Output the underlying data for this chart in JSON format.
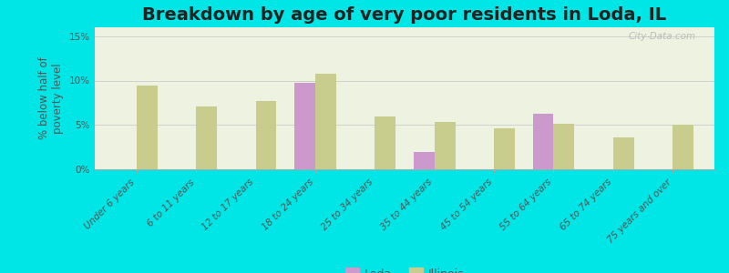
{
  "title": "Breakdown by age of very poor residents in Loda, IL",
  "ylabel": "% below half of\npoverty level",
  "background_color": "#00e5e5",
  "plot_bg_color": "#eef2e0",
  "categories": [
    "Under 6 years",
    "6 to 11 years",
    "12 to 17 years",
    "18 to 24 years",
    "25 to 34 years",
    "35 to 44 years",
    "45 to 54 years",
    "55 to 64 years",
    "65 to 74 years",
    "75 years and over"
  ],
  "loda_values": [
    null,
    null,
    null,
    9.7,
    null,
    2.0,
    null,
    6.3,
    null,
    null
  ],
  "illinois_values": [
    9.4,
    7.1,
    7.7,
    10.8,
    5.9,
    5.3,
    4.6,
    5.1,
    3.6,
    5.0
  ],
  "loda_color": "#cc99cc",
  "illinois_color": "#c8cc8c",
  "ylim": [
    0,
    16
  ],
  "yticks": [
    0,
    5,
    10,
    15
  ],
  "ytick_labels": [
    "0%",
    "5%",
    "10%",
    "15%"
  ],
  "bar_width": 0.35,
  "title_fontsize": 14,
  "tick_label_fontsize": 7.5,
  "axis_label_fontsize": 8.5,
  "legend_fontsize": 9,
  "watermark": "City-Data.com"
}
